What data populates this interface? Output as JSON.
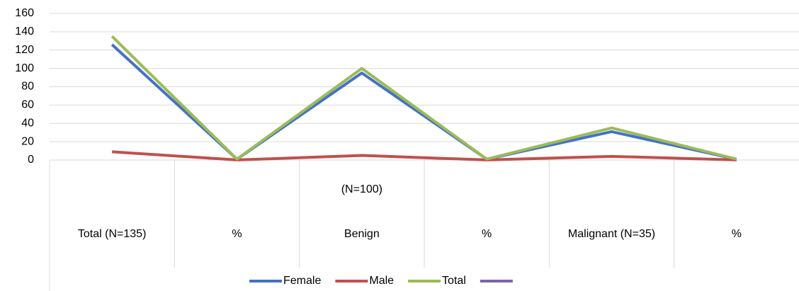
{
  "chart_data": {
    "type": "line",
    "categories": [
      "Total (N=135)",
      "%",
      "Benign",
      "%",
      "Malignant (N=35)",
      "%"
    ],
    "annotation": "(N=100)",
    "series": [
      {
        "name": "Female",
        "color": "#4472c4",
        "values": [
          126,
          0.93,
          95,
          0.95,
          31,
          0.89
        ]
      },
      {
        "name": "Male",
        "color": "#c0504d",
        "values": [
          9,
          0.07,
          5,
          0.05,
          4,
          0.11
        ]
      },
      {
        "name": "Total",
        "color": "#9bbb59",
        "values": [
          135,
          1,
          100,
          1,
          35,
          1
        ]
      },
      {
        "name": null,
        "color": "#8064a2",
        "values": [
          null,
          null,
          null,
          null,
          null,
          null
        ]
      }
    ],
    "ylim": [
      0,
      160
    ],
    "yticks": [
      0,
      20,
      40,
      60,
      80,
      100,
      120,
      140,
      160
    ],
    "grid": true
  }
}
